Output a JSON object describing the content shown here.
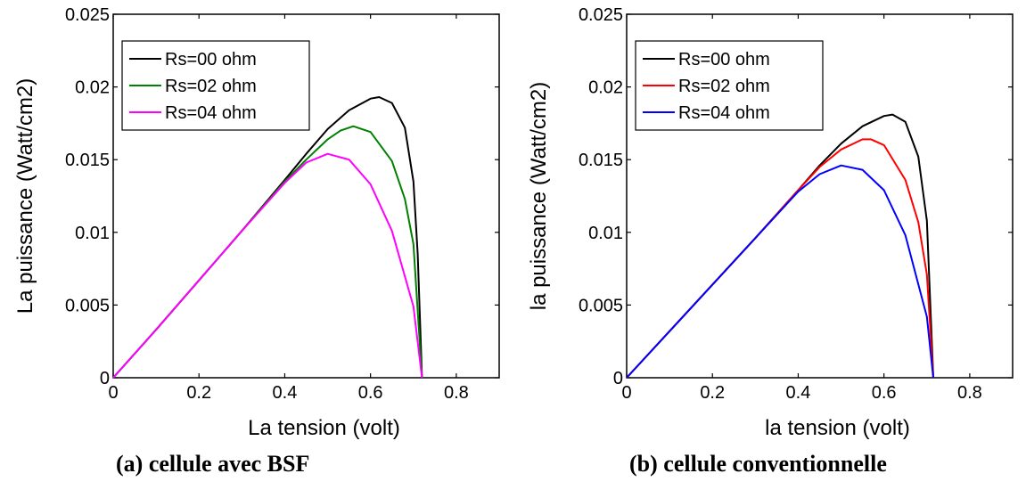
{
  "chart_data": [
    {
      "type": "line",
      "caption": "(a) cellule avec BSF",
      "xlabel": "La tension (volt)",
      "ylabel": "La puissance (Watt/cm2)",
      "xlim": [
        0,
        0.9
      ],
      "ylim": [
        0,
        0.025
      ],
      "xticks": [
        0,
        0.2,
        0.4,
        0.6,
        0.8
      ],
      "xtick_labels": [
        "0",
        "0.2",
        "0.4",
        "0.6",
        "0.8"
      ],
      "yticks": [
        0,
        0.005,
        0.01,
        0.015,
        0.02,
        0.025
      ],
      "ytick_labels": [
        "0",
        "0.005",
        "0.01",
        "0.015",
        "0.02",
        "0.025"
      ],
      "grid": false,
      "legend_position": "top-left",
      "series": [
        {
          "name": "Rs=00 ohm",
          "color": "#000000",
          "x": [
            0,
            0.1,
            0.2,
            0.3,
            0.4,
            0.45,
            0.5,
            0.55,
            0.6,
            0.62,
            0.65,
            0.68,
            0.7,
            0.71,
            0.72
          ],
          "y": [
            0,
            0.0033,
            0.0067,
            0.0101,
            0.0136,
            0.0154,
            0.0171,
            0.0184,
            0.0192,
            0.0193,
            0.0189,
            0.0172,
            0.0135,
            0.0085,
            0
          ]
        },
        {
          "name": "Rs=02 ohm",
          "color": "#008000",
          "x": [
            0,
            0.1,
            0.2,
            0.3,
            0.4,
            0.45,
            0.5,
            0.53,
            0.56,
            0.6,
            0.65,
            0.68,
            0.7,
            0.72
          ],
          "y": [
            0,
            0.0033,
            0.0067,
            0.0101,
            0.0135,
            0.015,
            0.0164,
            0.017,
            0.0173,
            0.0169,
            0.0149,
            0.0123,
            0.0092,
            0
          ]
        },
        {
          "name": "Rs=04 ohm",
          "color": "#ff00ff",
          "x": [
            0,
            0.1,
            0.2,
            0.3,
            0.4,
            0.45,
            0.5,
            0.55,
            0.6,
            0.65,
            0.7,
            0.72
          ],
          "y": [
            0,
            0.0033,
            0.0067,
            0.0101,
            0.0134,
            0.0148,
            0.0154,
            0.015,
            0.0133,
            0.0101,
            0.0049,
            0
          ]
        }
      ]
    },
    {
      "type": "line",
      "caption": "(b) cellule conventionnelle",
      "xlabel": "la tension (volt)",
      "ylabel": "la puissance (Watt/cm2)",
      "xlim": [
        0,
        0.9
      ],
      "ylim": [
        0,
        0.025
      ],
      "xticks": [
        0,
        0.2,
        0.4,
        0.6,
        0.8
      ],
      "xtick_labels": [
        "0",
        "0.2",
        "0.4",
        "0.6",
        "0.8"
      ],
      "yticks": [
        0,
        0.005,
        0.01,
        0.015,
        0.02,
        0.025
      ],
      "ytick_labels": [
        "0",
        "0.005",
        "0.01",
        "0.015",
        "0.02",
        "0.025"
      ],
      "grid": false,
      "legend_position": "top-left",
      "series": [
        {
          "name": "Rs=00 ohm",
          "color": "#000000",
          "x": [
            0,
            0.1,
            0.2,
            0.3,
            0.4,
            0.45,
            0.5,
            0.55,
            0.6,
            0.62,
            0.65,
            0.68,
            0.7,
            0.715
          ],
          "y": [
            0,
            0.0032,
            0.0064,
            0.0096,
            0.0129,
            0.0146,
            0.0161,
            0.0173,
            0.018,
            0.0181,
            0.0176,
            0.0152,
            0.0108,
            0
          ]
        },
        {
          "name": "Rs=02 ohm",
          "color": "#ff0000",
          "x": [
            0,
            0.1,
            0.2,
            0.3,
            0.4,
            0.45,
            0.5,
            0.55,
            0.57,
            0.6,
            0.65,
            0.68,
            0.7,
            0.715
          ],
          "y": [
            0,
            0.0032,
            0.0064,
            0.0096,
            0.0129,
            0.0145,
            0.0157,
            0.0164,
            0.0164,
            0.016,
            0.0136,
            0.0107,
            0.0071,
            0
          ]
        },
        {
          "name": "Rs=04 ohm",
          "color": "#0000ff",
          "x": [
            0,
            0.1,
            0.2,
            0.3,
            0.4,
            0.45,
            0.5,
            0.55,
            0.6,
            0.65,
            0.7,
            0.715
          ],
          "y": [
            0,
            0.0032,
            0.0064,
            0.0096,
            0.0128,
            0.014,
            0.0146,
            0.0143,
            0.0129,
            0.0098,
            0.0042,
            0
          ]
        }
      ]
    }
  ]
}
